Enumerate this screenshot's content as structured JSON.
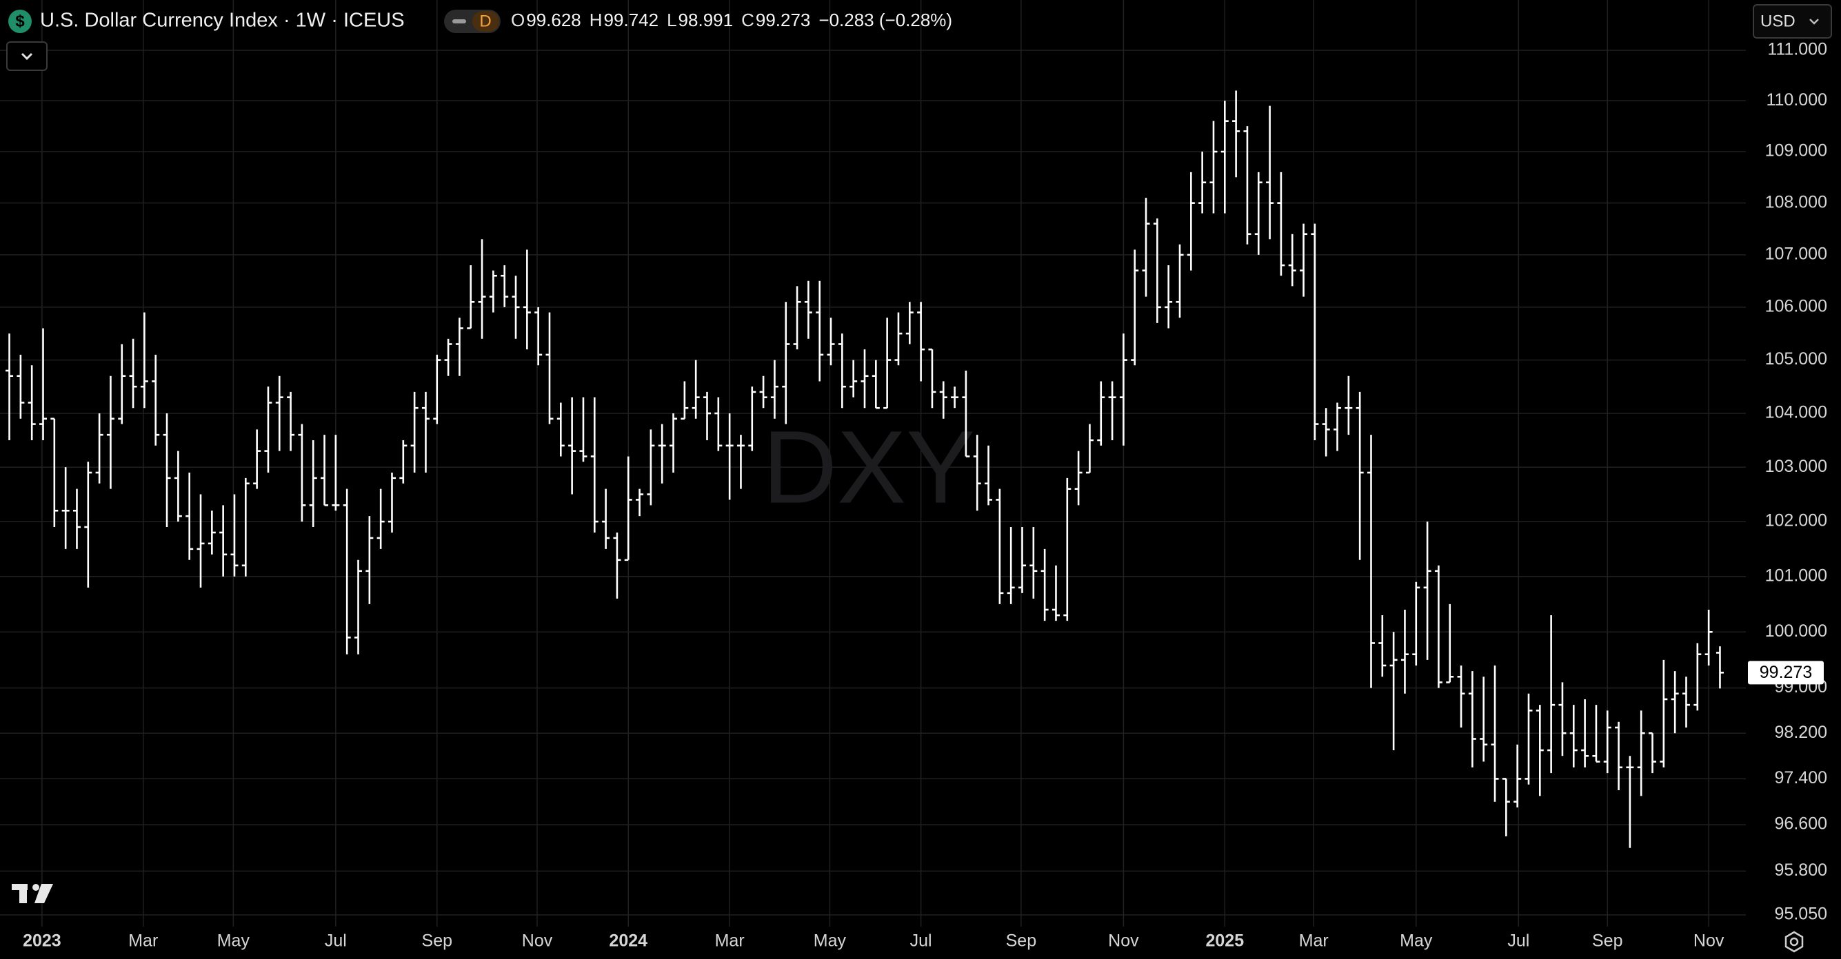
{
  "symbol_icon": "$",
  "badge": "D",
  "currency": "USD",
  "watermark": "DXY",
  "chart_data": {
    "type": "ohlc",
    "title": "U.S. Dollar Currency Index · 1W · ICEUS",
    "ohlc_labels": [
      "O",
      "H",
      "L",
      "C"
    ],
    "change_label": "−0.283 (−0.28%)",
    "color": "#ffffff",
    "grid": true,
    "log_scale": true,
    "xlim": [
      -0.83,
      154.3
    ],
    "xticks": [
      {
        "value": 2.9,
        "label": "2023"
      },
      {
        "value": 11.9,
        "label": "Mar"
      },
      {
        "value": 19.9,
        "label": "May"
      },
      {
        "value": 29.0,
        "label": "Jul"
      },
      {
        "value": 38.0,
        "label": "Sep"
      },
      {
        "value": 46.9,
        "label": "Nov"
      },
      {
        "value": 55.0,
        "label": "2024"
      },
      {
        "value": 64.0,
        "label": "Mar"
      },
      {
        "value": 72.9,
        "label": "May"
      },
      {
        "value": 81.0,
        "label": "Jul"
      },
      {
        "value": 89.9,
        "label": "Sep"
      },
      {
        "value": 99.0,
        "label": "Nov"
      },
      {
        "value": 108.0,
        "label": "2025"
      },
      {
        "value": 115.9,
        "label": "Mar"
      },
      {
        "value": 125.0,
        "label": "May"
      },
      {
        "value": 134.1,
        "label": "Jul"
      },
      {
        "value": 142.0,
        "label": "Sep"
      },
      {
        "value": 151.0,
        "label": "Nov"
      }
    ],
    "ylim": [
      95.05,
      111
    ],
    "yticks": [
      {
        "value": 111,
        "label": "111.000"
      },
      {
        "value": 110,
        "label": "110.000"
      },
      {
        "value": 109,
        "label": "109.000"
      },
      {
        "value": 108,
        "label": "108.000"
      },
      {
        "value": 107,
        "label": "107.000"
      },
      {
        "value": 106,
        "label": "106.000"
      },
      {
        "value": 105,
        "label": "105.000"
      },
      {
        "value": 104,
        "label": "104.000"
      },
      {
        "value": 103,
        "label": "103.000"
      },
      {
        "value": 102,
        "label": "102.000"
      },
      {
        "value": 101,
        "label": "101.000"
      },
      {
        "value": 100,
        "label": "100.000"
      },
      {
        "value": 99,
        "label": "99.000"
      },
      {
        "value": 98.2,
        "label": "98.200"
      },
      {
        "value": 97.4,
        "label": "97.400"
      },
      {
        "value": 96.6,
        "label": "96.600"
      },
      {
        "value": 95.8,
        "label": "95.800"
      },
      {
        "value": 95.05,
        "label": "95.050"
      }
    ],
    "open": [
      104.8,
      104.7,
      104.2,
      103.8,
      103.9,
      102.2,
      102.2,
      101.9,
      102.9,
      103.6,
      103.9,
      104.7,
      104.5,
      104.6,
      103.6,
      102.8,
      102.1,
      101.5,
      101.6,
      101.8,
      101.4,
      101.2,
      102.7,
      103.3,
      104.2,
      104.3,
      103.6,
      102.3,
      102.8,
      102.3,
      102.3,
      99.9,
      101.1,
      101.7,
      102.0,
      102.8,
      103.4,
      104.1,
      103.9,
      105.0,
      105.3,
      105.6,
      106.1,
      106.2,
      106.6,
      106.2,
      106.0,
      105.9,
      105.1,
      103.9,
      103.4,
      103.3,
      103.2,
      102.0,
      101.7,
      101.3,
      102.4,
      102.5,
      103.4,
      103.4,
      103.9,
      104.1,
      104.3,
      104.0,
      103.4,
      103.4,
      103.4,
      104.4,
      104.3,
      104.5,
      105.3,
      106.1,
      105.9,
      105.1,
      105.3,
      104.5,
      104.6,
      104.7,
      104.1,
      105.0,
      105.5,
      105.9,
      105.2,
      104.4,
      104.3,
      104.3,
      103.2,
      102.7,
      102.4,
      100.7,
      100.8,
      101.2,
      101.1,
      100.4,
      100.3,
      102.6,
      102.9,
      103.5,
      104.3,
      104.3,
      105.0,
      106.7,
      107.6,
      106.0,
      106.1,
      107.0,
      108.0,
      108.4,
      109.0,
      109.6,
      109.4,
      107.4,
      108.4,
      108.0,
      106.8,
      106.7,
      107.4,
      103.8,
      103.7,
      104.1,
      104.1,
      102.9,
      99.8,
      99.4,
      99.5,
      99.6,
      100.8,
      101.1,
      99.1,
      99.2,
      98.9,
      98.1,
      98.0,
      97.4,
      97.0,
      97.4,
      98.6,
      97.9,
      98.7,
      98.2,
      97.9,
      97.8,
      97.7,
      98.3,
      97.6,
      97.6,
      98.2,
      97.7,
      98.8,
      98.9,
      98.7,
      99.6,
      99.628
    ],
    "high": [
      105.5,
      105.1,
      104.9,
      105.6,
      103.9,
      103.0,
      102.6,
      103.1,
      104.0,
      104.7,
      105.3,
      105.4,
      105.9,
      105.1,
      104.0,
      103.3,
      102.9,
      102.5,
      102.2,
      102.3,
      102.5,
      102.8,
      103.7,
      104.5,
      104.7,
      104.4,
      103.8,
      103.5,
      103.6,
      103.6,
      102.6,
      101.3,
      102.1,
      102.6,
      102.9,
      103.5,
      104.4,
      104.4,
      105.1,
      105.4,
      105.8,
      106.8,
      107.3,
      106.7,
      106.8,
      106.6,
      107.1,
      106.0,
      105.9,
      104.2,
      104.3,
      104.3,
      104.3,
      102.6,
      101.8,
      103.2,
      102.6,
      103.7,
      103.8,
      104.0,
      104.6,
      105.0,
      104.4,
      104.3,
      104.0,
      103.6,
      104.5,
      104.7,
      105.0,
      106.1,
      106.4,
      106.5,
      106.5,
      105.8,
      105.5,
      105.0,
      105.2,
      105.0,
      105.8,
      105.9,
      106.1,
      106.1,
      105.2,
      104.6,
      104.5,
      104.8,
      103.6,
      103.4,
      102.6,
      101.9,
      101.9,
      101.9,
      101.5,
      101.2,
      102.8,
      103.3,
      103.8,
      104.6,
      104.6,
      105.5,
      107.1,
      108.1,
      107.7,
      106.8,
      107.2,
      108.6,
      109.0,
      109.6,
      110.0,
      110.2,
      109.5,
      108.6,
      109.9,
      108.6,
      107.4,
      107.6,
      107.6,
      104.1,
      104.2,
      104.7,
      104.4,
      103.6,
      100.3,
      100.0,
      100.4,
      100.9,
      102.0,
      101.2,
      100.5,
      99.4,
      99.3,
      99.2,
      99.4,
      97.4,
      98.0,
      98.9,
      98.7,
      100.3,
      99.1,
      98.7,
      98.8,
      98.7,
      98.6,
      98.4,
      97.8,
      98.6,
      98.2,
      99.5,
      99.3,
      99.2,
      99.8,
      100.4,
      99.742
    ],
    "low": [
      103.5,
      103.9,
      103.5,
      103.5,
      101.9,
      101.5,
      101.5,
      100.8,
      102.7,
      102.6,
      103.8,
      104.1,
      104.1,
      103.4,
      101.9,
      102.0,
      101.3,
      100.8,
      101.4,
      101.0,
      101.0,
      101.0,
      102.6,
      102.9,
      103.3,
      103.3,
      102.0,
      101.9,
      102.3,
      102.2,
      99.6,
      99.6,
      100.5,
      101.5,
      101.8,
      102.7,
      102.9,
      102.9,
      103.8,
      104.7,
      104.7,
      105.6,
      105.4,
      105.9,
      106.0,
      105.4,
      105.2,
      104.9,
      103.8,
      103.2,
      102.5,
      103.1,
      101.8,
      101.5,
      100.6,
      101.3,
      102.1,
      102.3,
      102.7,
      102.9,
      103.9,
      103.9,
      103.5,
      103.3,
      102.4,
      102.6,
      103.3,
      104.1,
      103.9,
      103.8,
      105.2,
      105.4,
      104.6,
      104.9,
      104.1,
      104.3,
      104.1,
      104.1,
      104.1,
      104.9,
      105.3,
      104.6,
      104.1,
      103.9,
      104.1,
      103.2,
      102.2,
      102.3,
      100.5,
      100.5,
      100.7,
      100.6,
      100.2,
      100.2,
      100.2,
      102.3,
      102.9,
      103.4,
      103.5,
      103.4,
      104.9,
      106.2,
      105.7,
      105.6,
      105.8,
      106.7,
      107.8,
      107.8,
      107.8,
      108.5,
      107.2,
      107.0,
      107.3,
      106.6,
      106.4,
      106.2,
      103.5,
      103.2,
      103.3,
      103.6,
      101.3,
      99.0,
      99.2,
      97.9,
      98.9,
      99.4,
      99.5,
      99.0,
      99.1,
      98.3,
      97.6,
      97.7,
      97.0,
      96.4,
      96.9,
      97.3,
      97.1,
      97.5,
      97.8,
      97.6,
      97.6,
      97.7,
      97.5,
      97.2,
      96.2,
      97.1,
      97.5,
      97.6,
      98.2,
      98.3,
      98.6,
      99.4,
      98.991
    ],
    "close": [
      104.7,
      104.2,
      103.8,
      103.9,
      102.2,
      102.2,
      101.9,
      102.9,
      103.6,
      103.9,
      104.7,
      104.5,
      104.6,
      103.6,
      102.8,
      102.1,
      101.5,
      101.6,
      101.8,
      101.4,
      101.2,
      102.7,
      103.3,
      104.2,
      104.3,
      103.6,
      102.3,
      102.8,
      102.3,
      102.3,
      99.9,
      101.1,
      101.7,
      102.0,
      102.8,
      103.4,
      104.1,
      103.9,
      105.0,
      105.3,
      105.6,
      106.1,
      106.2,
      106.6,
      106.2,
      106.0,
      105.9,
      105.1,
      103.9,
      103.4,
      103.3,
      103.2,
      102.0,
      101.7,
      101.3,
      102.4,
      102.5,
      103.4,
      103.4,
      103.9,
      104.1,
      104.3,
      104.0,
      103.4,
      103.4,
      103.4,
      104.4,
      104.3,
      104.5,
      105.3,
      106.1,
      105.9,
      105.1,
      105.3,
      104.5,
      104.6,
      104.7,
      104.1,
      105.0,
      105.5,
      105.9,
      105.2,
      104.4,
      104.3,
      104.3,
      103.2,
      102.7,
      102.4,
      100.7,
      100.8,
      101.2,
      101.1,
      100.4,
      100.3,
      102.6,
      102.9,
      103.5,
      104.3,
      104.3,
      105.0,
      106.7,
      107.6,
      106.0,
      106.1,
      107.0,
      108.0,
      108.4,
      109.0,
      109.6,
      109.4,
      107.4,
      108.4,
      108.0,
      106.8,
      106.7,
      107.4,
      103.8,
      103.7,
      104.1,
      104.1,
      102.9,
      99.8,
      99.4,
      99.5,
      99.6,
      100.8,
      101.1,
      99.1,
      99.2,
      98.9,
      98.1,
      98.0,
      97.4,
      97.0,
      97.4,
      98.6,
      97.9,
      98.7,
      98.2,
      97.9,
      97.8,
      97.7,
      98.3,
      97.6,
      97.6,
      98.2,
      97.7,
      98.8,
      98.9,
      98.7,
      99.6,
      100.0,
      99.273
    ]
  }
}
